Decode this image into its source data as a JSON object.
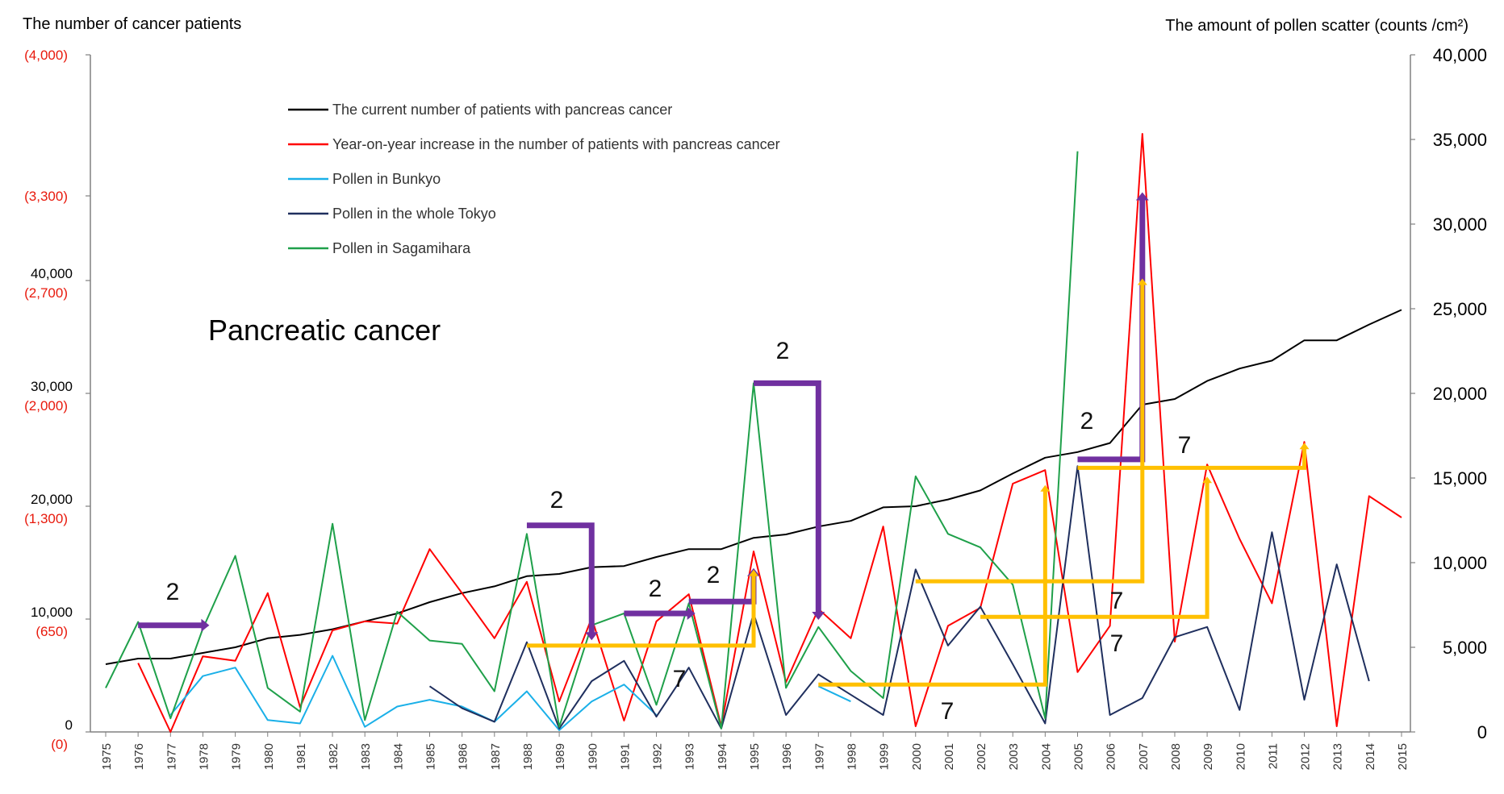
{
  "chart_data": {
    "type": "line",
    "title": "Pancreatic cancer",
    "y_left_label": "The number of cancer patients",
    "y_right_label": "The amount of pollen scatter (counts /cm²)",
    "y_left_ticks": [
      {
        "patients": 0,
        "increase": "(0)",
        "label": "0"
      },
      {
        "patients": 10000,
        "increase": "(650)",
        "label": "10,000"
      },
      {
        "patients": 20000,
        "increase": "(1,300)",
        "label": "20,000"
      },
      {
        "patients": 30000,
        "increase": "(2,000)",
        "label": "30,000"
      },
      {
        "patients": 40000,
        "increase": "(2,700)",
        "label": "40,000"
      },
      {
        "patients": 47500,
        "increase": "(3,300)",
        "label": ""
      },
      {
        "patients": 60000,
        "increase": "(4,000)",
        "label": ""
      }
    ],
    "y_right_ticks": [
      "0",
      "5,000",
      "10,000",
      "15,000",
      "20,000",
      "25,000",
      "30,000",
      "35,000",
      "40,000"
    ],
    "ylim_left": [
      0,
      60000
    ],
    "ylim_right": [
      0,
      40000
    ],
    "years": [
      "1975",
      "1976",
      "1977",
      "1978",
      "1979",
      "1980",
      "1981",
      "1982",
      "1983",
      "1984",
      "1985",
      "1986",
      "1987",
      "1988",
      "1989",
      "1990",
      "1991",
      "1992",
      "1993",
      "1994",
      "1995",
      "1996",
      "1997",
      "1998",
      "1999",
      "2000",
      "2001",
      "2002",
      "2003",
      "2004",
      "2005",
      "2006",
      "2007",
      "2008",
      "2009",
      "2010",
      "2011",
      "2012",
      "2013",
      "2014",
      "2015"
    ],
    "series": [
      {
        "name": "The current number of patients with pancreas cancer",
        "color": "#000000",
        "axis": "left",
        "values": [
          6000,
          6500,
          6500,
          7000,
          7500,
          8300,
          8600,
          9100,
          9800,
          10500,
          11500,
          12300,
          12900,
          13800,
          14000,
          14600,
          14700,
          15500,
          16200,
          16200,
          17200,
          17500,
          18200,
          18700,
          19900,
          20000,
          20600,
          21400,
          22900,
          24300,
          24800,
          25600,
          29000,
          29500,
          31100,
          32200,
          32900,
          34700,
          34700,
          36100,
          37400
        ]
      },
      {
        "name": "Year-on-year increase in the number of patients with pancreas cancer",
        "color": "#ff0000",
        "axis": "left",
        "values": [
          null,
          6100,
          0,
          6700,
          6300,
          12300,
          2200,
          9000,
          9800,
          9600,
          16200,
          12300,
          8300,
          13300,
          2700,
          10100,
          1000,
          9800,
          12200,
          500,
          16000,
          4400,
          10900,
          8300,
          18200,
          500,
          9400,
          11000,
          22000,
          23200,
          5300,
          9400,
          53000,
          8000,
          23700,
          17100,
          11400,
          25700,
          500,
          20900,
          19000
        ]
      },
      {
        "name": "Pollen in Bunkyo",
        "color": "#1ab0e8",
        "axis": "right",
        "values": [
          null,
          null,
          1000,
          3300,
          3800,
          700,
          500,
          4500,
          300,
          1500,
          1900,
          1500,
          600,
          2400,
          100,
          1800,
          2800,
          1000,
          null,
          null,
          null,
          null,
          2700,
          1800,
          null,
          null,
          null,
          null,
          null,
          null,
          null,
          null,
          null,
          null,
          null,
          null,
          null,
          null,
          null,
          null,
          null
        ]
      },
      {
        "name": "Pollen in the whole Tokyo",
        "color": "#1f2f5e",
        "axis": "right",
        "values": [
          null,
          null,
          null,
          null,
          null,
          null,
          null,
          null,
          null,
          null,
          2700,
          1400,
          600,
          5300,
          200,
          3000,
          4200,
          900,
          3800,
          200,
          7000,
          1000,
          3400,
          2200,
          1000,
          9600,
          5100,
          7400,
          4000,
          500,
          15700,
          1000,
          2000,
          5600,
          6200,
          1300,
          11800,
          1900,
          9900,
          3000,
          null
        ]
      },
      {
        "name": "Pollen in Sagamihara",
        "color": "#1fa04a",
        "axis": "right",
        "values": [
          2600,
          6500,
          800,
          6100,
          10400,
          2600,
          1200,
          12300,
          700,
          7100,
          5400,
          5200,
          2400,
          11700,
          300,
          6300,
          7000,
          1600,
          7600,
          200,
          20600,
          2600,
          6200,
          3600,
          2000,
          15100,
          11700,
          10900,
          8700,
          800,
          34300,
          null,
          null,
          null,
          null,
          null,
          null,
          null,
          null,
          null,
          null
        ]
      }
    ],
    "annotations": [
      {
        "label": "2",
        "color": "#7030a0",
        "kind": "h-arrow",
        "year_from": "1976",
        "year_to": "1978",
        "y_right": 6300
      },
      {
        "label": "2",
        "color": "#7030a0",
        "kind": "bracket",
        "year_from": "1988",
        "year_to": "1990",
        "y_right": 12200,
        "y_end_right": 5800
      },
      {
        "label": "2",
        "color": "#7030a0",
        "kind": "bracket",
        "year_from": "1991",
        "year_to": "1993",
        "y_right": 7000,
        "y_end_right": 7000
      },
      {
        "label": "2",
        "color": "#7030a0",
        "kind": "bracket-up",
        "year_from": "1993",
        "year_to": "1995",
        "y_right": 7700,
        "y_end_right": 9300
      },
      {
        "label": "2",
        "color": "#7030a0",
        "kind": "bracket",
        "year_from": "1995",
        "year_to": "1997",
        "y_right": 20600,
        "y_end_right": 7000
      },
      {
        "label": "2",
        "color": "#7030a0",
        "kind": "bracket-up",
        "year_from": "2005",
        "year_to": "2007",
        "y_right": 16100,
        "y_end_right": 31500
      },
      {
        "label": "7",
        "color": "#ffc000",
        "kind": "bracket-up",
        "year_from": "1988",
        "year_to": "1995",
        "y_right": 5100,
        "y_end_right": 9300
      },
      {
        "label": "7",
        "color": "#ffc000",
        "kind": "bracket-up",
        "year_from": "1997",
        "year_to": "2004",
        "y_right": 2800,
        "y_end_right": 14300
      },
      {
        "label": "7",
        "color": "#ffc000",
        "kind": "bracket-up",
        "year_from": "2000",
        "year_to": "2007",
        "y_right": 8900,
        "y_end_right": 26500
      },
      {
        "label": "7",
        "color": "#ffc000",
        "kind": "bracket-up",
        "year_from": "2002",
        "year_to": "2009",
        "y_right": 6800,
        "y_end_right": 14800
      },
      {
        "label": "7",
        "color": "#ffc000",
        "kind": "bracket-up",
        "year_from": "2005",
        "year_to": "2012",
        "y_right": 15600,
        "y_end_right": 16800
      }
    ]
  }
}
